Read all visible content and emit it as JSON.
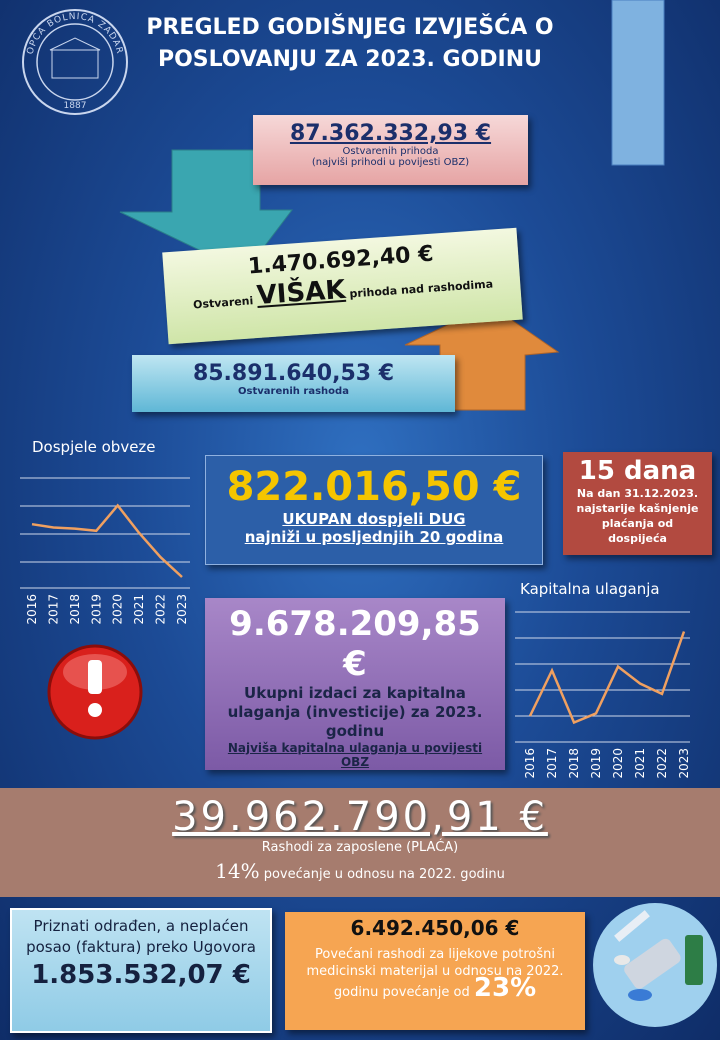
{
  "header": {
    "logo_text": "OPĆA BOLNICA ZADAR",
    "logo_year": "1887",
    "title_line1": "PREGLED GODIŠNJEG IZVJEŠĆA O",
    "title_line2": "POSLOVANJU ZA 2023. GODINU"
  },
  "revenue": {
    "amount": "87.362.332,93 €",
    "label": "Ostvarenih prihoda",
    "note": "(najviši prihodi u povijesti OBZ)"
  },
  "surplus": {
    "amount": "1.470.692,40 €",
    "prefix": "Ostvareni",
    "word": "VIŠAK",
    "suffix": "prihoda nad rashodima"
  },
  "expenses": {
    "amount": "85.891.640,53 €",
    "label": "Ostvarenih rashoda"
  },
  "debt": {
    "amount": "822.016,50 €",
    "line1": "UKUPAN dospjeli DUG",
    "line2": "najniži u posljednjih 20 godina"
  },
  "delay": {
    "value": "15 dana",
    "text": "Na dan 31.12.2023. najstarije kašnjenje plaćanja od dospijeća"
  },
  "capital": {
    "amount": "9.678.209,85 €",
    "text": "Ukupni izdaci za kapitalna ulaganja (investicije) za 2023. godinu",
    "note": "Najviša kapitalna ulaganja u povijesti OBZ"
  },
  "salaries": {
    "amount": "39.962.790,91 €",
    "label": "Rashodi za zaposlene (PLAĆA)",
    "pct": "14%",
    "pct_text": "povećanje u odnosu na 2022. godinu"
  },
  "contracts": {
    "text": "Priznati odrađen, a neplaćen posao (faktura) preko Ugovora",
    "amount": "1.853.532,07 €"
  },
  "medical": {
    "amount": "6.492.450,06 €",
    "text": "Povećani rashodi za lijekove potrošni medicinski materijal u odnosu na 2022. godinu povećanje od",
    "pct": "23%"
  },
  "chart_data": [
    {
      "type": "line",
      "title": "Dospjele obveze",
      "categories": [
        "2016",
        "2017",
        "2018",
        "2019",
        "2020",
        "2021",
        "2022",
        "2023"
      ],
      "values": [
        58,
        55,
        54,
        52,
        75,
        50,
        28,
        10
      ],
      "ylim": [
        0,
        100
      ],
      "color": "#f0a060"
    },
    {
      "type": "line",
      "title": "Kapitalna ulaganja",
      "categories": [
        "2016",
        "2017",
        "2018",
        "2019",
        "2020",
        "2021",
        "2022",
        "2023"
      ],
      "values": [
        20,
        55,
        15,
        22,
        58,
        45,
        37,
        85
      ],
      "ylim": [
        0,
        100
      ],
      "color": "#f0a060"
    }
  ]
}
